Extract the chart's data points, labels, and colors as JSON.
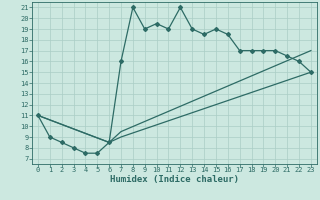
{
  "title": "",
  "xlabel": "Humidex (Indice chaleur)",
  "xlim": [
    -0.5,
    23.5
  ],
  "ylim": [
    6.5,
    21.5
  ],
  "xticks": [
    0,
    1,
    2,
    3,
    4,
    5,
    6,
    7,
    8,
    9,
    10,
    11,
    12,
    13,
    14,
    15,
    16,
    17,
    18,
    19,
    20,
    21,
    22,
    23
  ],
  "yticks": [
    7,
    8,
    9,
    10,
    11,
    12,
    13,
    14,
    15,
    16,
    17,
    18,
    19,
    20,
    21
  ],
  "line_color": "#2d6b65",
  "bg_color": "#cce8e0",
  "grid_color": "#aacec6",
  "line1_x": [
    0,
    1,
    2,
    3,
    4,
    5,
    6,
    7,
    8,
    9,
    10,
    11,
    12,
    13,
    14,
    15,
    16,
    17,
    18,
    19,
    20,
    21,
    22,
    23
  ],
  "line1_y": [
    11,
    9,
    8.5,
    8,
    7.5,
    7.5,
    8.5,
    16,
    21,
    19,
    19.5,
    19,
    21,
    19,
    18.5,
    19,
    18.5,
    17,
    17,
    17,
    17,
    16.5,
    16,
    15
  ],
  "line2_x": [
    0,
    6,
    7,
    23
  ],
  "line2_y": [
    11,
    8.5,
    9,
    15
  ],
  "line3_x": [
    0,
    6,
    7,
    23
  ],
  "line3_y": [
    11,
    8.5,
    9.5,
    17
  ],
  "marker": "D",
  "markersize": 2.0,
  "linewidth": 0.9,
  "tick_fontsize": 5.0,
  "xlabel_fontsize": 6.5
}
